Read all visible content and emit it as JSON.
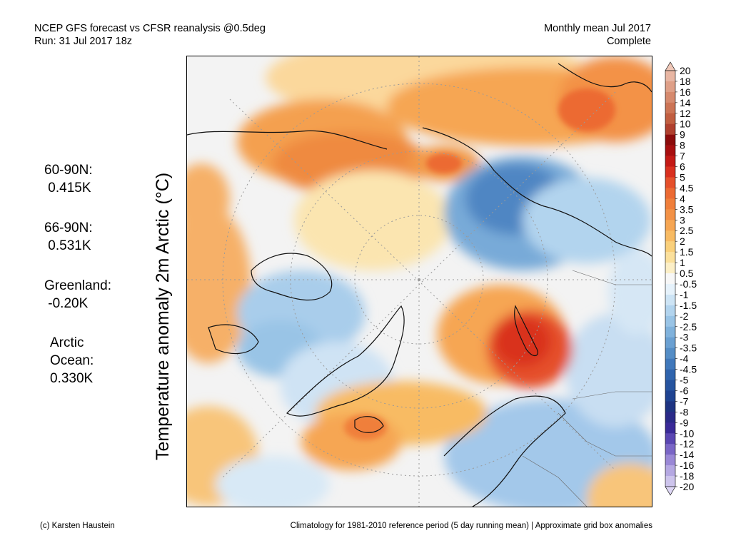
{
  "header": {
    "line1_left": "NCEP GFS forecast vs CFSR reanalysis @0.5deg",
    "line2_left": "Run: 31 Jul 2017 18z",
    "line1_right": "Monthly mean Jul 2017",
    "line2_right": "Complete"
  },
  "stats": [
    {
      "line1": "60-90N:",
      "line2": " 0.415K"
    },
    {
      "line1": "66-90N:",
      "line2": " 0.531K"
    },
    {
      "line1": "Greenland:",
      "line2": " -0.20K"
    },
    {
      "line1": "Arctic",
      "line2": "Ocean:",
      "line3": "0.330K"
    }
  ],
  "ylabel": "Temperature anomaly 2m Arctic (°C)",
  "colorbar": {
    "labels": [
      "20",
      "18",
      "16",
      "14",
      "12",
      "10",
      "9",
      "8",
      "7",
      "6",
      "5",
      "4.5",
      "4",
      "3.5",
      "3",
      "2.5",
      "2",
      "1.5",
      "1",
      "0.5",
      "-0.5",
      "-1",
      "-1.5",
      "-2",
      "-2.5",
      "-3",
      "-3.5",
      "-4",
      "-4.5",
      "-5",
      "-6",
      "-7",
      "-8",
      "-9",
      "-10",
      "-12",
      "-14",
      "-16",
      "-18",
      "-20"
    ],
    "colors": [
      "#e8b6a3",
      "#dfa088",
      "#d68a6e",
      "#cc7455",
      "#c15e40",
      "#b0402e",
      "#8c0c0c",
      "#a80f10",
      "#c41a16",
      "#d9301f",
      "#e5502b",
      "#ec6a33",
      "#f07f3b",
      "#f39247",
      "#f6a653",
      "#f8bb63",
      "#fad07b",
      "#fbe09c",
      "#fcefc7",
      "#f7f7f7",
      "#e6f2fb",
      "#cde4f5",
      "#b2d4ee",
      "#99c4e6",
      "#80b2dc",
      "#6aa0d2",
      "#548dc6",
      "#4078bb",
      "#2f64ad",
      "#26549f",
      "#1f4391",
      "#1e3482",
      "#2a2a88",
      "#3a2a98",
      "#5a46b2",
      "#7a66c6",
      "#9a88d6",
      "#b5a8e2",
      "#cdc4ec"
    ],
    "top_cap_color": "#f0c8b8",
    "bottom_cap_color": "#ddd6f4"
  },
  "footer": {
    "left": "(c) Karsten Haustein",
    "right": "Climatology for 1981-2010 reference period (5 day running mean) | Approximate grid box anomalies"
  }
}
